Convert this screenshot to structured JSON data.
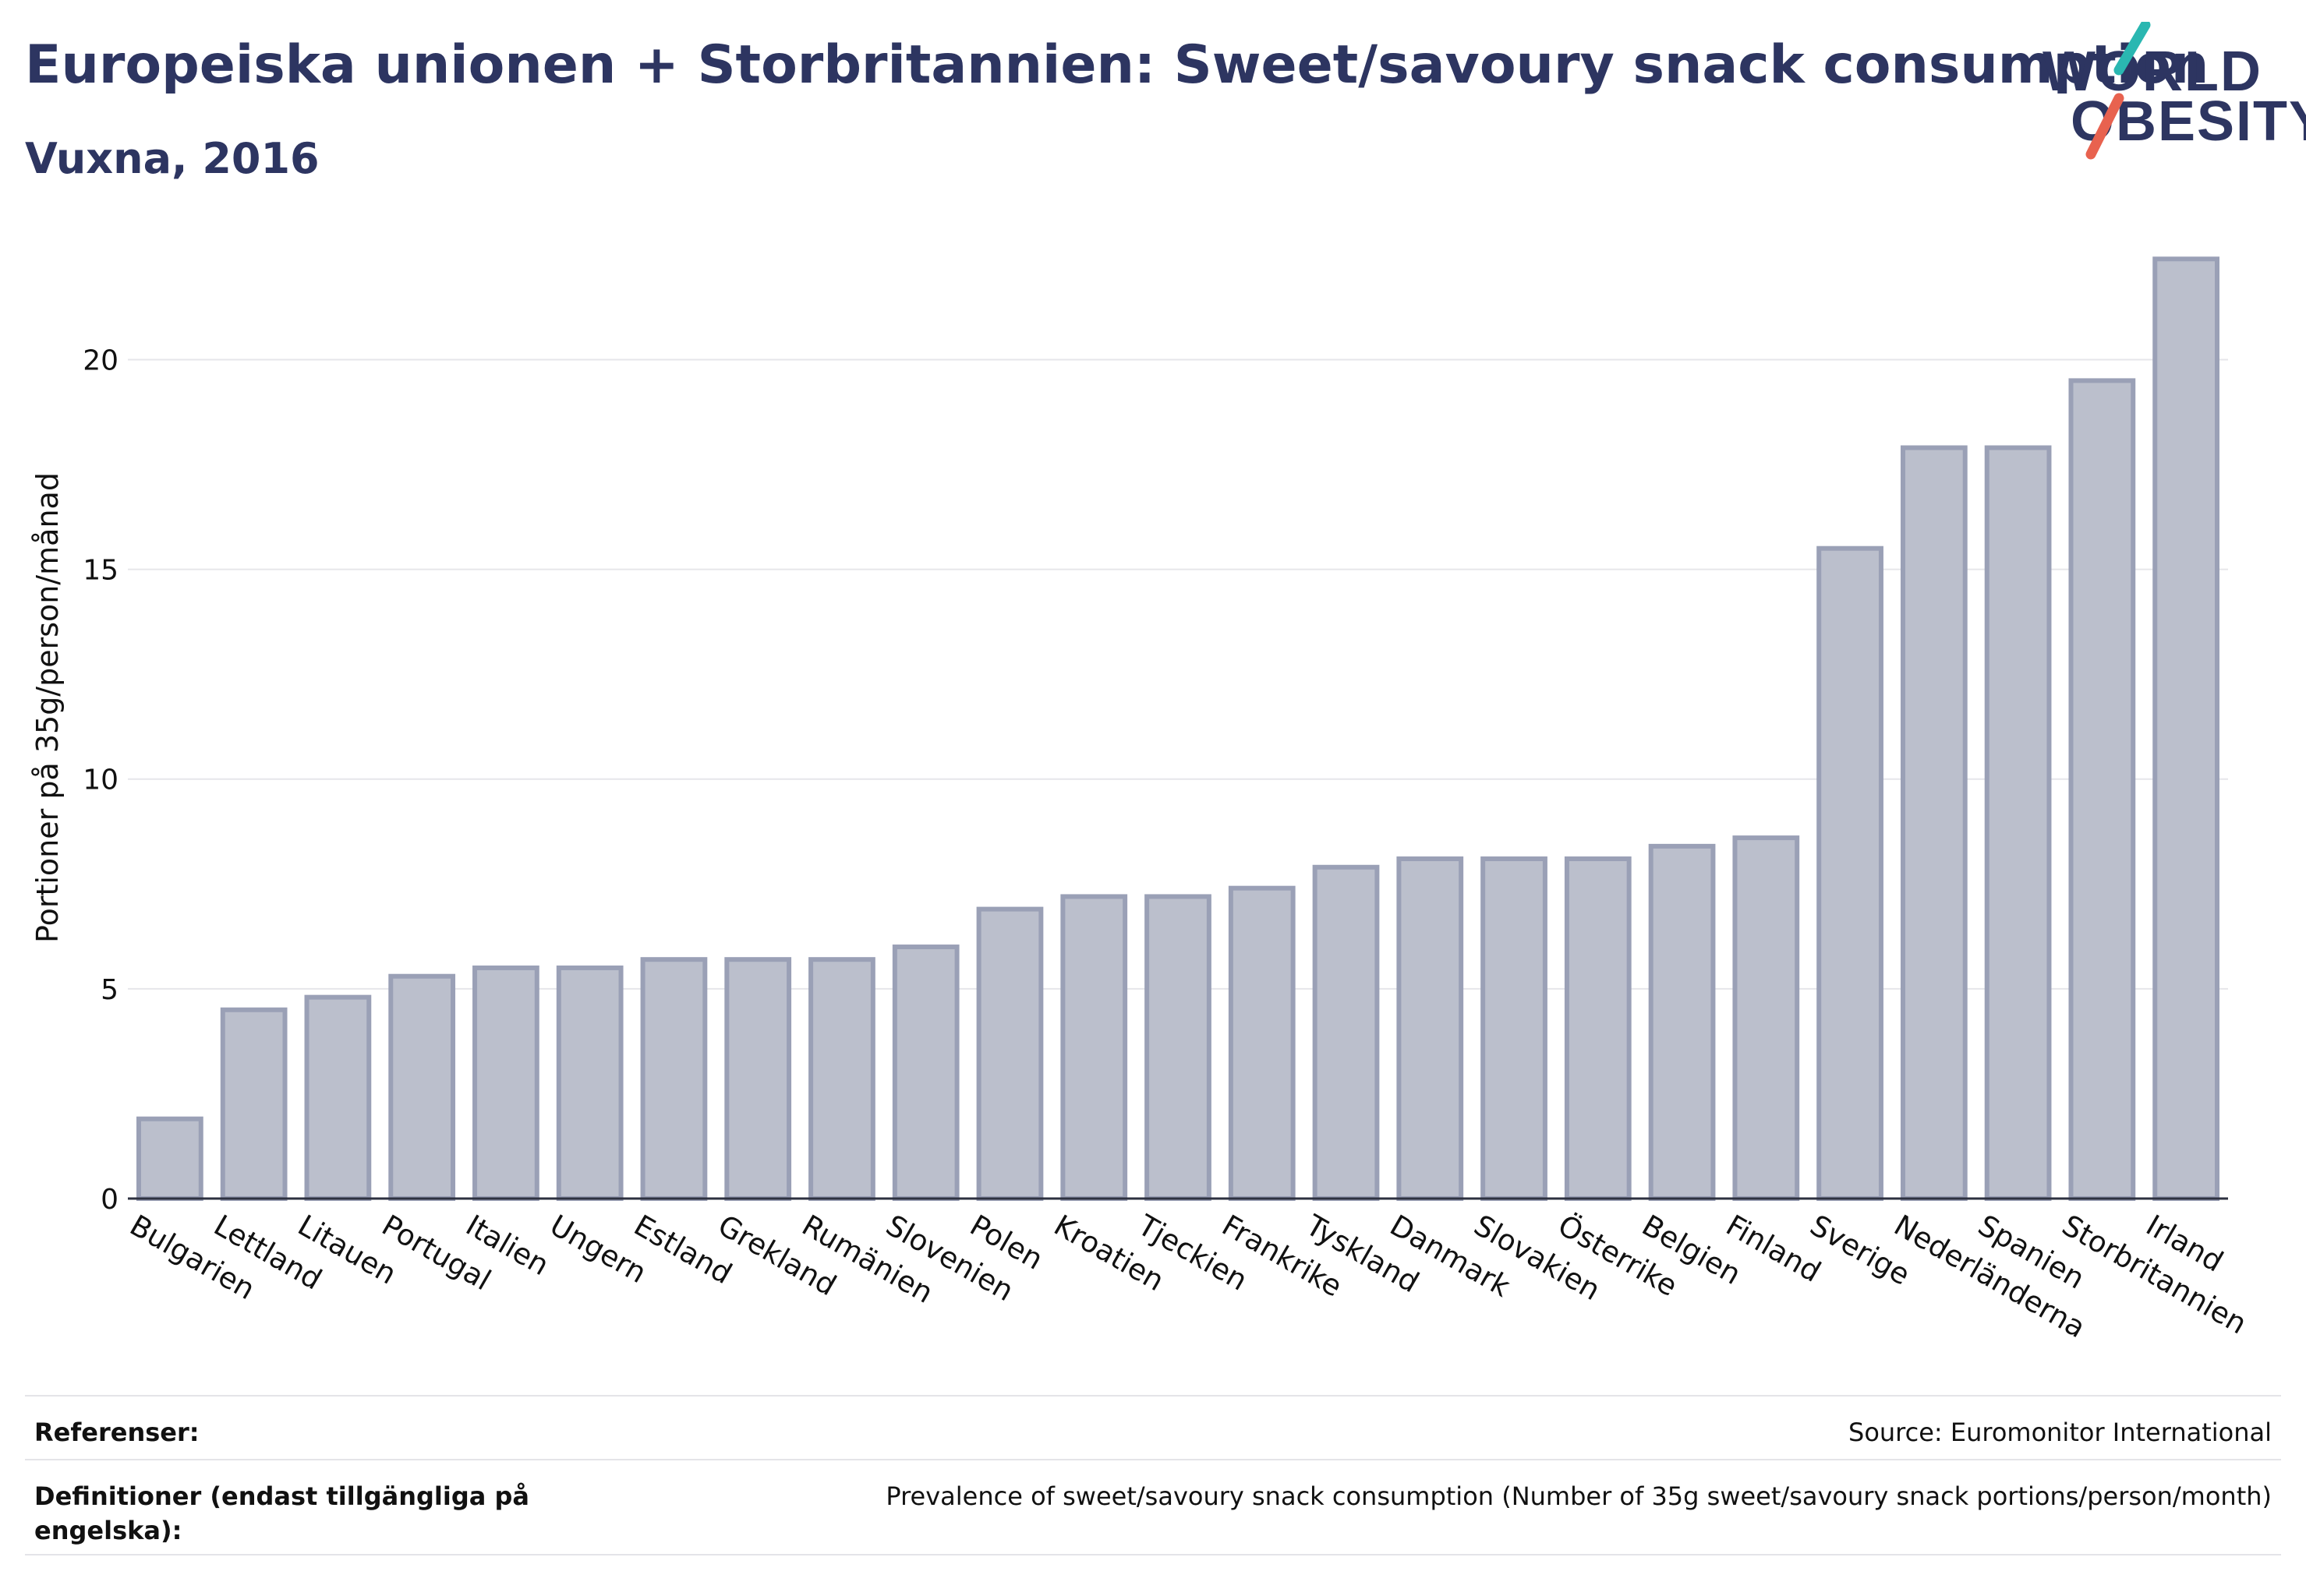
{
  "header": {
    "title": "Europeiska unionen + Storbritannien: Sweet/savoury snack consumption",
    "subtitle": "Vuxna, 2016"
  },
  "logo": {
    "line1": "WORLD",
    "line2": "OBESITY",
    "accent_colors": [
      "#2ab7b1",
      "#e8624f"
    ]
  },
  "chart_data": {
    "type": "bar",
    "title": "Europeiska unionen + Storbritannien: Sweet/savoury snack consumption",
    "subtitle": "Vuxna, 2016",
    "xlabel": "",
    "ylabel": "Portioner på 35g/person/månad",
    "ylim": [
      0,
      23
    ],
    "yticks": [
      0,
      5,
      10,
      15,
      20
    ],
    "grid": true,
    "bar_color": "#bbbfcc",
    "bar_border_color": "#9aa0b6",
    "categories": [
      "Bulgarien",
      "Lettland",
      "Litauen",
      "Portugal",
      "Italien",
      "Ungern",
      "Estland",
      "Grekland",
      "Rumänien",
      "Slovenien",
      "Polen",
      "Kroatien",
      "Tjeckien",
      "Frankrike",
      "Tyskland",
      "Danmark",
      "Slovakien",
      "Österrike",
      "Belgien",
      "Finland",
      "Sverige",
      "Nederländerna",
      "Spanien",
      "Storbritannien",
      "Irland"
    ],
    "values": [
      1.9,
      4.5,
      4.8,
      5.3,
      5.5,
      5.5,
      5.7,
      5.7,
      5.7,
      6.0,
      6.9,
      7.2,
      7.2,
      7.4,
      7.9,
      8.1,
      8.1,
      8.1,
      8.4,
      8.6,
      15.5,
      17.9,
      17.9,
      19.5,
      22.4
    ]
  },
  "footer": {
    "references_label": "Referenser:",
    "references_value": "Source: Euromonitor International",
    "definitions_label": "Definitioner (endast tillgängliga på engelska):",
    "definitions_value": "Prevalence of sweet/savoury snack consumption (Number of 35g sweet/savoury snack portions/person/month)"
  }
}
